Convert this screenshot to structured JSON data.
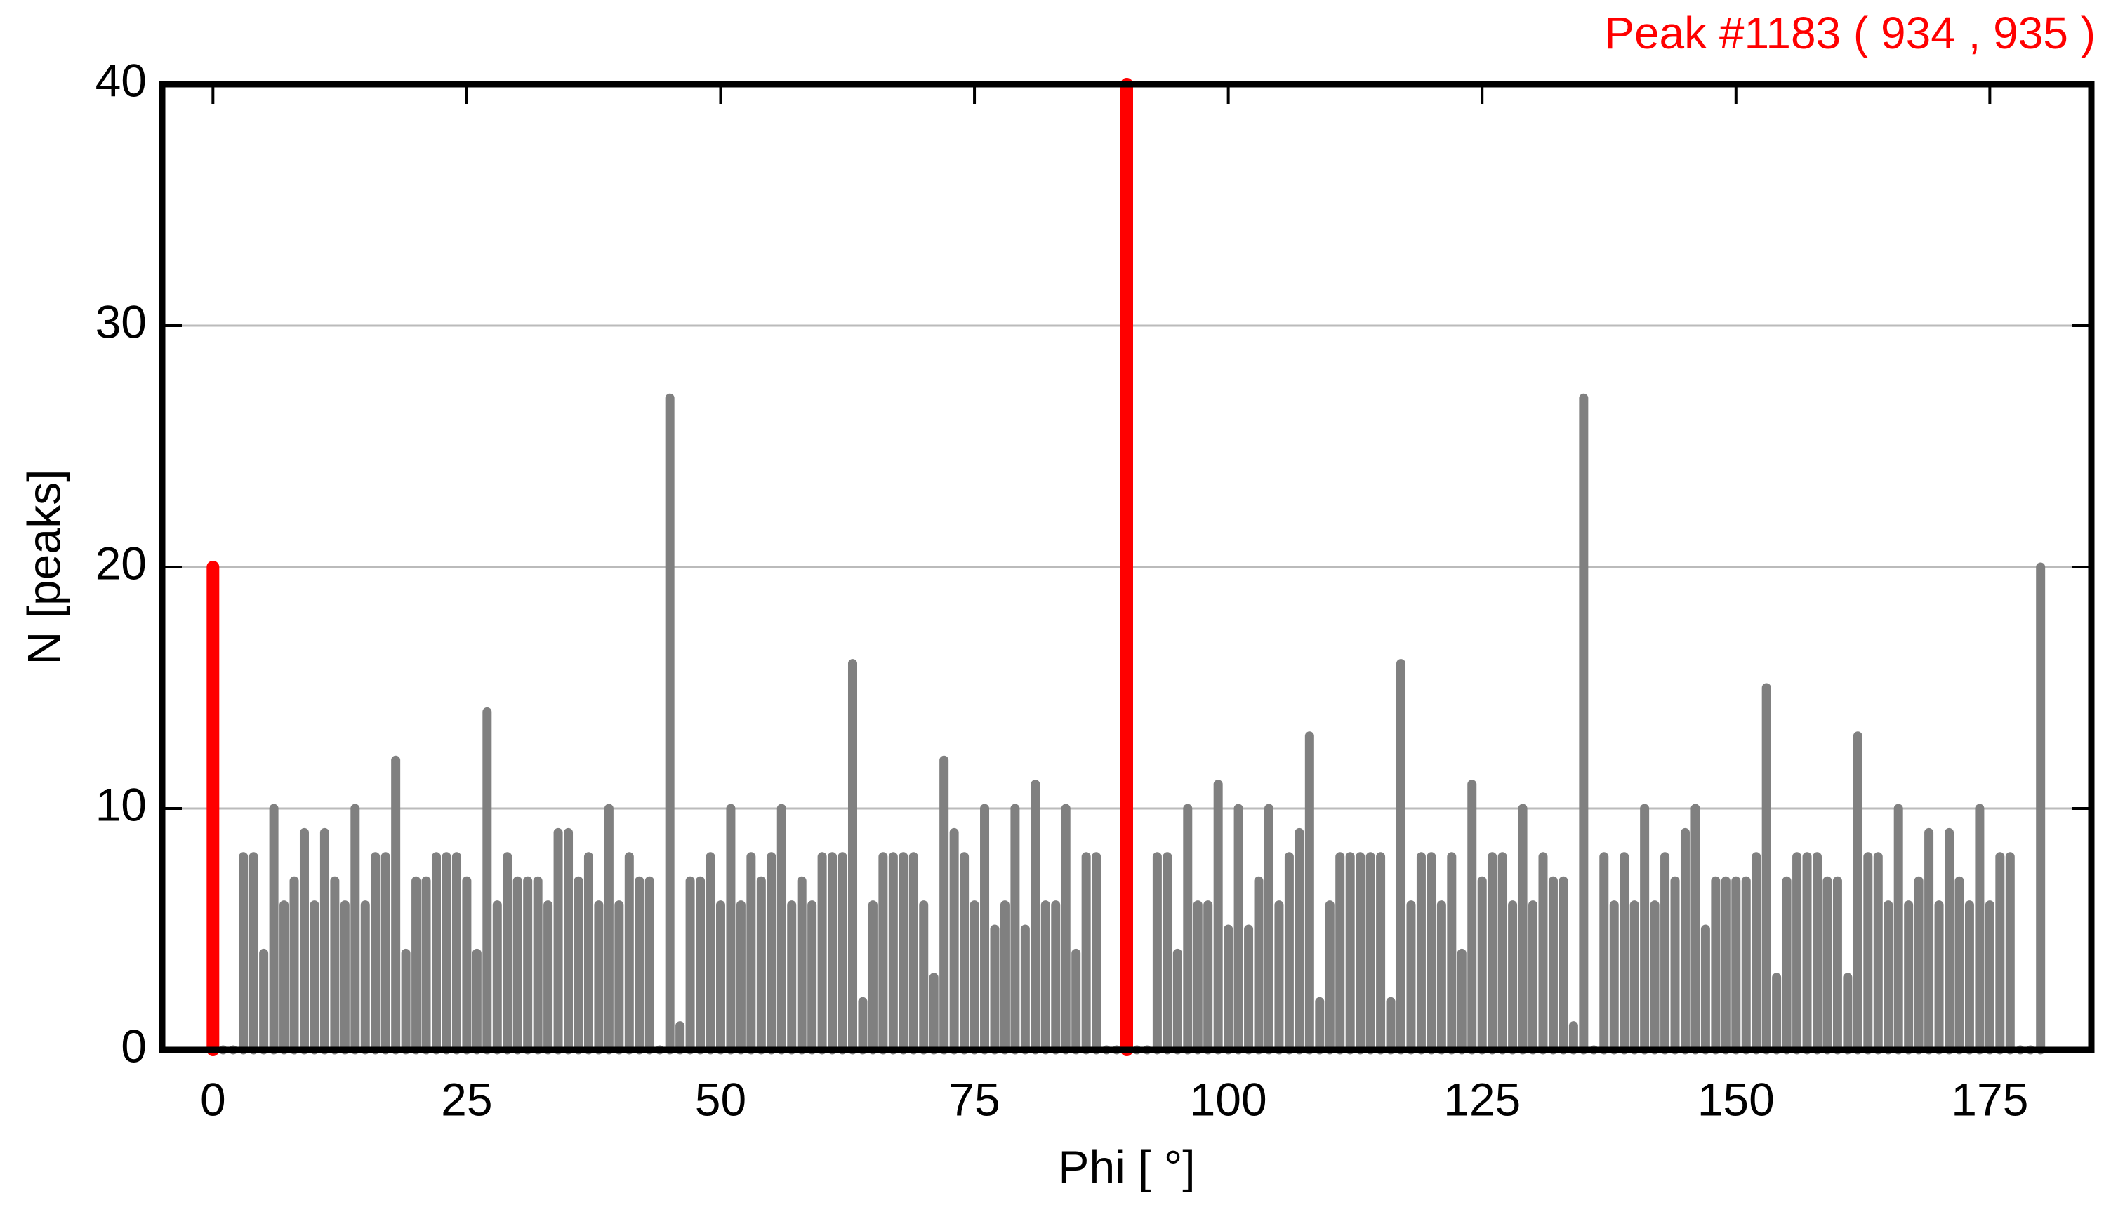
{
  "chart_data": {
    "type": "bar",
    "annotation": "Peak #1183  ( 934 , 935 )",
    "xlabel": "Phi [ °]",
    "ylabel": "N [peaks]",
    "x": [
      0,
      1,
      2,
      3,
      4,
      5,
      6,
      7,
      8,
      9,
      10,
      11,
      12,
      13,
      14,
      15,
      16,
      17,
      18,
      19,
      20,
      21,
      22,
      23,
      24,
      25,
      26,
      27,
      28,
      29,
      30,
      31,
      32,
      33,
      34,
      35,
      36,
      37,
      38,
      39,
      40,
      41,
      42,
      43,
      44,
      45,
      46,
      47,
      48,
      49,
      50,
      51,
      52,
      53,
      54,
      55,
      56,
      57,
      58,
      59,
      60,
      61,
      62,
      63,
      64,
      65,
      66,
      67,
      68,
      69,
      70,
      71,
      72,
      73,
      74,
      75,
      76,
      77,
      78,
      79,
      80,
      81,
      82,
      83,
      84,
      85,
      86,
      87,
      88,
      89,
      90,
      91,
      92,
      93,
      94,
      95,
      96,
      97,
      98,
      99,
      100,
      101,
      102,
      103,
      104,
      105,
      106,
      107,
      108,
      109,
      110,
      111,
      112,
      113,
      114,
      115,
      116,
      117,
      118,
      119,
      120,
      121,
      122,
      123,
      124,
      125,
      126,
      127,
      128,
      129,
      130,
      131,
      132,
      133,
      134,
      135,
      136,
      137,
      138,
      139,
      140,
      141,
      142,
      143,
      144,
      145,
      146,
      147,
      148,
      149,
      150,
      151,
      152,
      153,
      154,
      155,
      156,
      157,
      158,
      159,
      160,
      161,
      162,
      163,
      164,
      165,
      166,
      167,
      168,
      169,
      170,
      171,
      172,
      173,
      174,
      175,
      176,
      177,
      178,
      179,
      180
    ],
    "values": [
      20,
      0,
      0,
      8,
      8,
      4,
      10,
      6,
      7,
      9,
      6,
      9,
      7,
      6,
      10,
      6,
      8,
      8,
      12,
      4,
      7,
      7,
      8,
      8,
      8,
      7,
      4,
      14,
      6,
      8,
      7,
      7,
      7,
      6,
      9,
      9,
      7,
      8,
      6,
      10,
      6,
      8,
      7,
      7,
      0,
      27,
      1,
      7,
      7,
      8,
      6,
      10,
      6,
      8,
      7,
      8,
      10,
      6,
      7,
      6,
      8,
      8,
      8,
      16,
      2,
      6,
      8,
      8,
      8,
      8,
      6,
      3,
      12,
      9,
      8,
      6,
      10,
      5,
      6,
      10,
      5,
      11,
      6,
      6,
      10,
      4,
      8,
      8,
      0,
      0,
      40,
      0,
      0,
      8,
      8,
      4,
      10,
      6,
      6,
      11,
      5,
      10,
      5,
      7,
      10,
      6,
      8,
      9,
      13,
      2,
      6,
      8,
      8,
      8,
      8,
      8,
      2,
      16,
      6,
      8,
      8,
      6,
      8,
      4,
      11,
      7,
      8,
      8,
      6,
      10,
      6,
      8,
      7,
      7,
      1,
      27,
      0,
      8,
      6,
      8,
      6,
      10,
      6,
      8,
      7,
      9,
      10,
      5,
      7,
      7,
      7,
      7,
      8,
      15,
      3,
      7,
      8,
      8,
      8,
      7,
      7,
      3,
      13,
      8,
      8,
      6,
      10,
      6,
      7,
      9,
      6,
      9,
      7,
      6,
      10,
      6,
      8,
      8,
      0,
      0,
      20
    ],
    "color": "#808080",
    "highlight_color": "#ff0000",
    "highlight_x": [
      0,
      90
    ],
    "annotation_color": "#ff0000",
    "grid_color": "#bbbbbb",
    "xlim": [
      -5,
      185
    ],
    "xticks": [
      0,
      25,
      50,
      75,
      100,
      125,
      150,
      175
    ],
    "ylim": [
      0,
      40
    ],
    "yticks": [
      0,
      10,
      20,
      30,
      40
    ],
    "grid": true
  }
}
